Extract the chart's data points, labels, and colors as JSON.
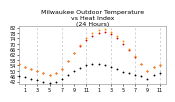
{
  "title": "Milwaukee Outdoor Temperature\nvs Heat Index\n(24 Hours)",
  "bg_color": "#ffffff",
  "grid_color": "#c0c0c0",
  "hours": [
    0,
    1,
    2,
    3,
    4,
    5,
    6,
    7,
    8,
    9,
    10,
    11,
    12,
    13,
    14,
    15,
    16,
    17,
    18,
    19,
    20,
    21,
    22,
    23
  ],
  "temp": [
    55,
    53,
    51,
    50,
    48,
    47,
    48,
    51,
    57,
    63,
    68,
    73,
    76,
    78,
    79,
    77,
    74,
    70,
    65,
    60,
    55,
    50,
    53,
    54
  ],
  "heat_index": [
    55,
    53,
    51,
    50,
    48,
    47,
    48,
    51,
    57,
    63,
    69,
    74,
    78,
    80,
    81,
    79,
    76,
    72,
    66,
    61,
    55,
    50,
    53,
    54
  ],
  "dewpoint": [
    46,
    45,
    44,
    43,
    42,
    41,
    42,
    44,
    47,
    50,
    52,
    54,
    55,
    55,
    54,
    53,
    51,
    49,
    48,
    47,
    46,
    44,
    47,
    48
  ],
  "temp_color": "#cc0000",
  "heat_index_color": "#ff8800",
  "dewpoint_color": "#000000",
  "ylim": [
    40,
    83
  ],
  "yticks": [
    42,
    46,
    50,
    54,
    58,
    62,
    66,
    70,
    74,
    78,
    82
  ],
  "ytick_labels": [
    "42",
    "46",
    "50",
    "54",
    "58",
    "62",
    "66",
    "70",
    "74",
    "78",
    "82"
  ],
  "xtick_positions": [
    1,
    3,
    5,
    7,
    9,
    11,
    13,
    15,
    17,
    19,
    21,
    23
  ],
  "xtick_labels": [
    "1",
    "3",
    "5",
    "7",
    "9",
    "11",
    "1",
    "3",
    "5",
    "7",
    "9",
    "11"
  ],
  "vgrid_positions": [
    3,
    7,
    11,
    15,
    19,
    23
  ],
  "title_fontsize": 4.5,
  "tick_fontsize": 3.5,
  "dot_size": 1.8
}
